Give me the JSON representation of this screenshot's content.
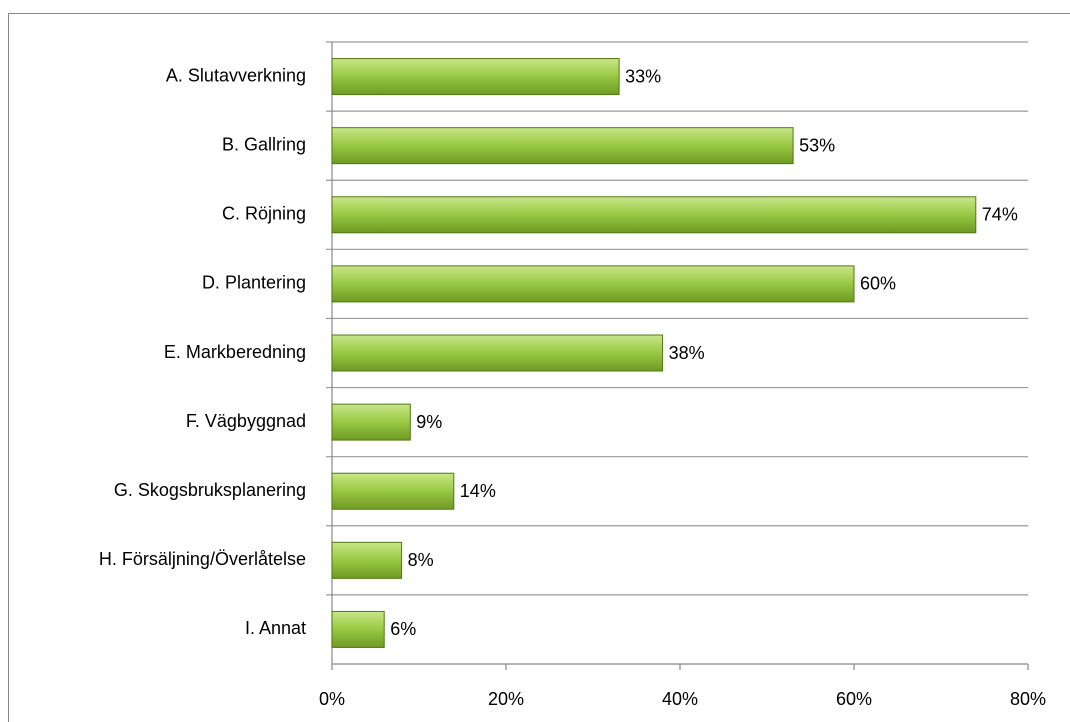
{
  "chart_data": {
    "type": "bar",
    "orientation": "horizontal",
    "categories": [
      "A. Slutavverkning",
      "B. Gallring",
      "C. Röjning",
      "D. Plantering",
      "E. Markberedning",
      "F. Vägbyggnad",
      "G. Skogsbruksplanering",
      "H. Försäljning/Överlåtelse",
      "I. Annat"
    ],
    "values": [
      33,
      53,
      74,
      60,
      38,
      9,
      14,
      8,
      6
    ],
    "value_labels": [
      "33%",
      "53%",
      "74%",
      "60%",
      "38%",
      "9%",
      "14%",
      "8%",
      "6%"
    ],
    "color": "#8cbf3a",
    "xlim": [
      0,
      80
    ],
    "xticks": [
      {
        "value": 0,
        "label": "0%"
      },
      {
        "value": 20,
        "label": "20%"
      },
      {
        "value": 40,
        "label": "40%"
      },
      {
        "value": 60,
        "label": "60%"
      },
      {
        "value": 80,
        "label": "80%"
      }
    ]
  }
}
